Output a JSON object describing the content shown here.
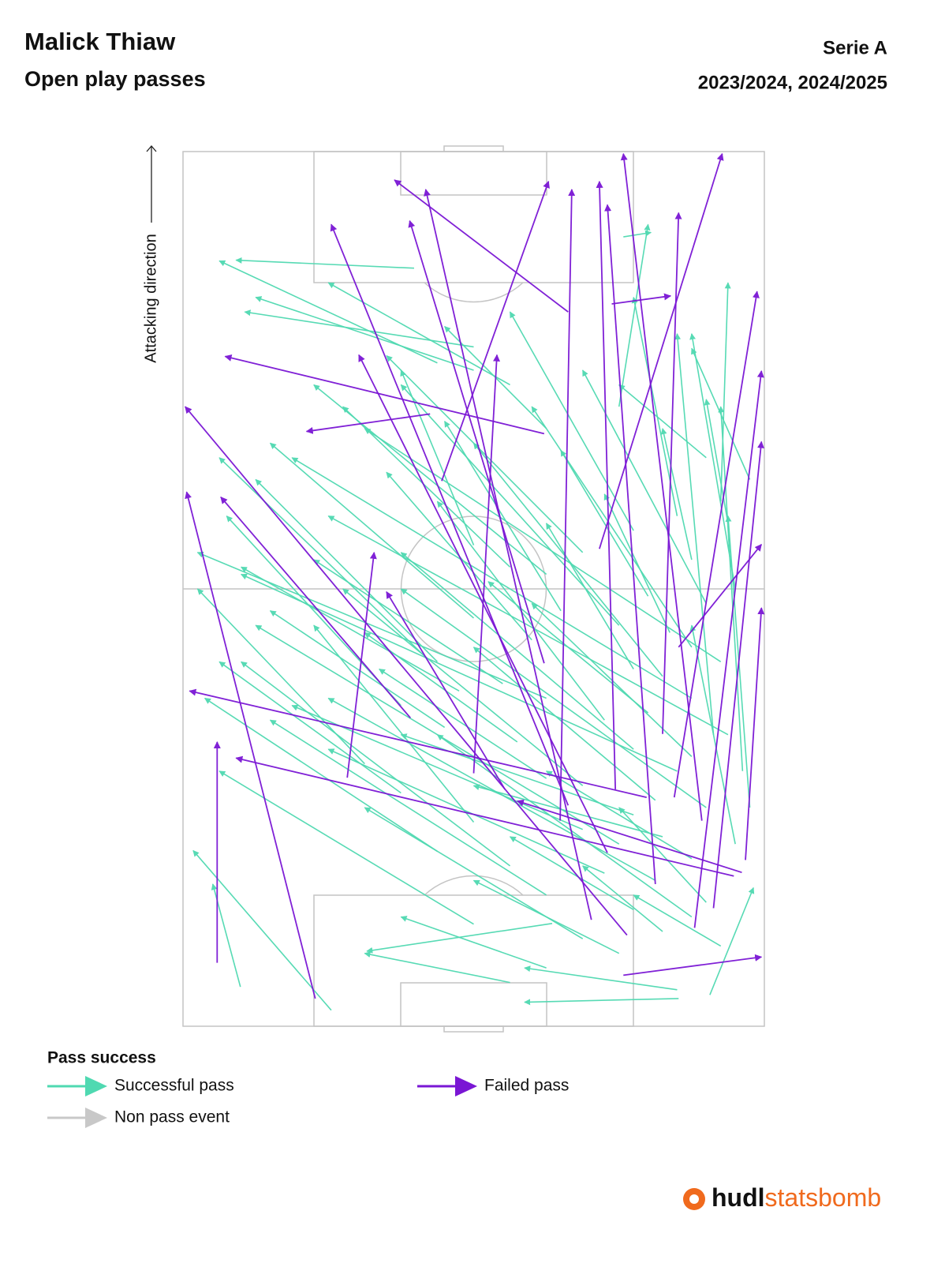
{
  "chart_data": {
    "type": "pass_map",
    "title": "Malick Thiaw",
    "subtitle": "Open play passes",
    "competition": "Serie A",
    "seasons": "2023/2024, 2024/2025",
    "direction_label": "Attacking direction",
    "legend_title": "Pass success",
    "logo": {
      "bold": "hudl",
      "light": "statsbomb"
    },
    "xlim": [
      0,
      120
    ],
    "ylim": [
      0,
      80
    ],
    "series": [
      {
        "name": "Successful pass",
        "color": "#4fd9b1",
        "passes": [
          [
            20,
            65,
            45,
            20
          ],
          [
            15,
            70,
            40,
            35
          ],
          [
            25,
            60,
            55,
            10
          ],
          [
            30,
            72,
            60,
            30
          ],
          [
            35,
            68,
            62,
            8
          ],
          [
            40,
            75,
            70,
            20
          ],
          [
            45,
            70,
            78,
            15
          ],
          [
            50,
            74,
            82,
            25
          ],
          [
            12,
            55,
            30,
            25
          ],
          [
            18,
            50,
            42,
            12
          ],
          [
            22,
            45,
            50,
            8
          ],
          [
            28,
            40,
            55,
            18
          ],
          [
            33,
            55,
            60,
            22
          ],
          [
            38,
            62,
            65,
            30
          ],
          [
            42,
            58,
            72,
            35
          ],
          [
            48,
            66,
            80,
            40
          ],
          [
            52,
            70,
            85,
            48
          ],
          [
            55,
            60,
            88,
            30
          ],
          [
            58,
            72,
            90,
            55
          ],
          [
            60,
            76,
            95,
            70
          ],
          [
            25,
            76,
            55,
            70
          ],
          [
            30,
            78,
            70,
            75
          ],
          [
            35,
            77,
            85,
            74
          ],
          [
            40,
            73,
            95,
            68
          ],
          [
            10,
            60,
            20,
            40
          ],
          [
            8,
            50,
            15,
            30
          ],
          [
            6,
            45,
            10,
            25
          ],
          [
            5,
            68,
            8,
            47
          ],
          [
            14,
            40,
            35,
            5
          ],
          [
            24,
            35,
            45,
            3
          ],
          [
            32,
            30,
            50,
            5
          ],
          [
            36,
            25,
            60,
            2
          ],
          [
            44,
            30,
            70,
            6
          ],
          [
            50,
            35,
            75,
            10
          ],
          [
            56,
            40,
            80,
            12
          ],
          [
            62,
            50,
            88,
            18
          ],
          [
            65,
            55,
            92,
            28
          ],
          [
            68,
            62,
            98,
            45
          ],
          [
            70,
            68,
            100,
            62
          ],
          [
            72,
            74,
            102,
            75
          ],
          [
            75,
            78,
            93,
            70
          ],
          [
            78,
            72,
            88,
            60
          ],
          [
            45,
            50,
            65,
            2
          ],
          [
            47,
            44,
            64,
            18
          ],
          [
            53,
            48,
            76,
            28
          ],
          [
            57,
            52,
            83,
            36
          ],
          [
            63,
            45,
            85,
            22
          ],
          [
            66,
            40,
            90,
            30
          ],
          [
            26,
            66,
            33,
            40
          ],
          [
            29,
            62,
            40,
            30
          ],
          [
            34,
            50,
            49,
            27
          ],
          [
            39,
            46,
            54,
            25
          ],
          [
            16,
            62,
            26,
            45
          ],
          [
            21,
            58,
            38,
            20
          ],
          [
            27,
            55,
            44,
            15
          ],
          [
            31,
            65,
            52,
            40
          ],
          [
            37,
            70,
            58,
            48
          ],
          [
            43,
            64,
            61,
            42
          ],
          [
            49,
            62,
            69,
            50
          ],
          [
            54,
            67,
            73,
            58
          ],
          [
            59,
            64,
            79,
            52
          ],
          [
            64,
            70,
            82,
            66
          ],
          [
            69,
            75,
            86,
            72
          ],
          [
            11,
            74,
            18,
            62
          ],
          [
            13,
            66,
            22,
            55
          ],
          [
            17,
            72,
            30,
            60
          ],
          [
            23,
            70,
            35,
            50
          ],
          [
            41,
            36,
            57,
            12
          ],
          [
            46,
            38,
            63,
            8
          ],
          [
            51,
            33,
            78,
            5
          ],
          [
            82,
            50,
            96,
            36
          ],
          [
            85,
            60,
            110,
            64
          ],
          [
            88,
            45,
            102,
            20
          ],
          [
            90,
            40,
            100,
            10
          ],
          [
            91,
            35,
            105,
            5
          ],
          [
            5.4,
            7.9,
            19.5,
            4.1
          ],
          [
            2.2,
            20.4,
            24.1,
            1.4
          ],
          [
            3.8,
            68.2,
            3.3,
            47
          ],
          [
            108.3,
            60.6,
            108.9,
            64.4
          ],
          [
            104,
            31.8,
            105.1,
            7.3
          ],
          [
            93.2,
            40,
            98,
            8.5
          ],
          [
            4.3,
            72.5,
            19,
            78.5
          ],
          [
            14.1,
            50.8,
            10.3,
            25.3
          ]
        ]
      },
      {
        "name": "Failed pass",
        "color": "#7a16d4",
        "passes": [
          [
            3.8,
            18.2,
            73.3,
            0.5
          ],
          [
            8.7,
            4.7,
            39,
            4.7
          ],
          [
            7,
            60.6,
            9.5,
            79.6
          ],
          [
            21.1,
            76.9,
            30.9,
            46
          ],
          [
            98,
            53,
            116.1,
            29.1
          ],
          [
            84,
            34,
            81.6,
            17
          ],
          [
            81.3,
            49.7,
            91.9,
            5.8
          ],
          [
            74.8,
            35.6,
            115.9,
            50.3
          ],
          [
            65.5,
            57.3,
            119.7,
            74.2
          ],
          [
            99.1,
            59,
            100.2,
            67.1
          ],
          [
            12.5,
            61.1,
            85,
            0.3
          ],
          [
            14.6,
            56.2,
            114.8,
            33.4
          ],
          [
            20.6,
            75.8,
            36.8,
            7.3
          ],
          [
            34.1,
            22.6,
            65,
            26.3
          ],
          [
            31.4,
            63.8,
            46,
            0.9
          ],
          [
            13.5,
            70.4,
            89.9,
            79.6
          ],
          [
            16.2,
            73,
            80.2,
            79.6
          ],
          [
            28.2,
            51.9,
            114.8,
            53.5
          ],
          [
            30.3,
            53,
            110,
            20.4
          ],
          [
            23.8,
            58.4,
            92.1,
            24.2
          ],
          [
            22.8,
            77.4,
            57.4,
            79.6
          ],
          [
            40.1,
            66,
            111.6,
            68.2
          ],
          [
            31.4,
            67.6,
            100.8,
            79
          ],
          [
            34.7,
            40,
            92.1,
            43.2
          ],
          [
            49.8,
            49.7,
            110.5,
            31.2
          ],
          [
            28.2,
            71.4,
            119.7,
            60.6
          ],
          [
            32.5,
            44.3,
            59.6,
            28
          ],
          [
            42.3,
            31.3,
            72.6,
            5.2
          ],
          [
            32.5,
            59.5,
            115.9,
            57.3
          ],
          [
            19.5,
            65,
            112.7,
            58.4
          ],
          [
            52,
            68.2,
            66.1,
            79.6
          ]
        ]
      },
      {
        "name": "Non pass event",
        "color": "#c8c8c8",
        "passes": []
      }
    ]
  }
}
